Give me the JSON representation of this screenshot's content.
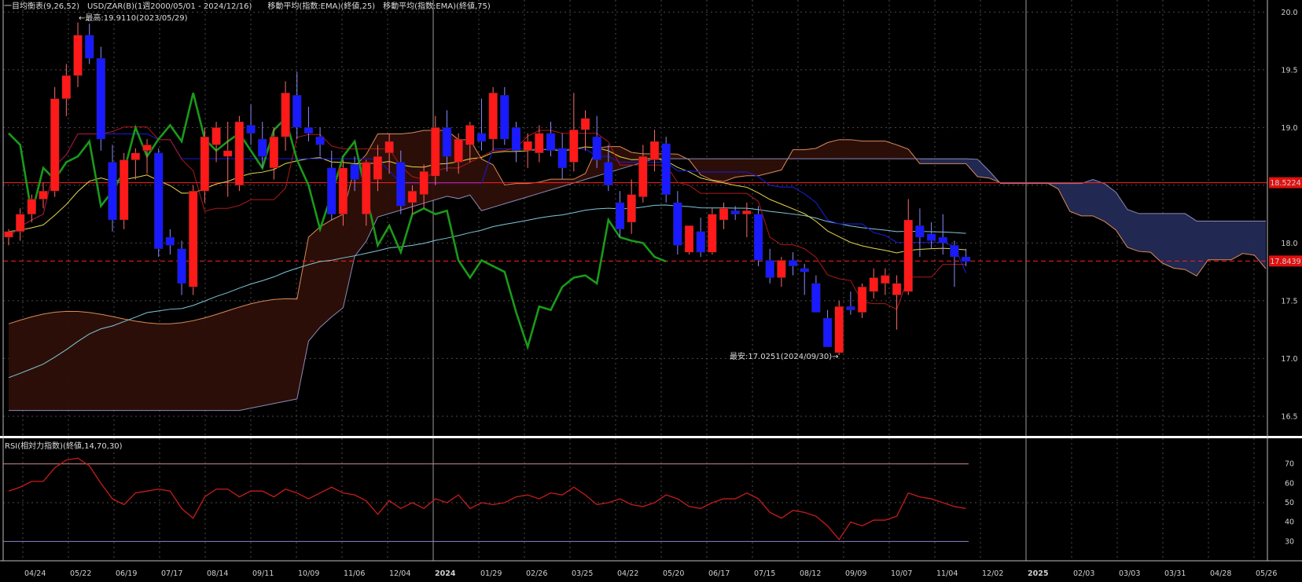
{
  "chart_data": [
    {
      "type": "candlestick",
      "title": "一目均衡表(9,26,52)　USD/ZAR(B)(1週2000/05/01 - 2024/12/16)　　移動平均(指数:EMA)(終値,25)　移動平均(指数:EMA)(終値,75)",
      "price_axis_ticks": [
        "20.0",
        "19.5",
        "19.0",
        "18.5",
        "18.0",
        "17.5",
        "17.0",
        "16.5"
      ],
      "ylim": [
        16.35,
        20.05
      ],
      "x_ticks": [
        "04/24",
        "05/22",
        "06/19",
        "07/17",
        "08/14",
        "09/11",
        "10/09",
        "11/06",
        "12/04",
        "2024",
        "01/29",
        "02/26",
        "03/25",
        "04/22",
        "05/20",
        "06/17",
        "07/15",
        "08/12",
        "09/09",
        "10/07",
        "11/04",
        "12/02",
        "2025",
        "02/03",
        "03/03",
        "03/31",
        "04/28",
        "05/26"
      ],
      "year_ticks": [
        "2024",
        "2025"
      ],
      "annotations": {
        "high": "←最高:19.9110(2023/05/29)",
        "low": "最安:17.0251(2024/09/30)→"
      },
      "price_labels": {
        "resistance": "18.5224",
        "last": "17.8439"
      },
      "colors": {
        "up": "#ff1a1a",
        "down": "#1a1aff",
        "chikou": "#1a9a1a",
        "ema25": "#e6d84a",
        "ema75": "#7ec8d8",
        "tenkan": "#b01818",
        "kijun": "#1818c0",
        "cloud_bull": "#2e0f08",
        "cloud_bear": "#232a55",
        "span_a": "#d98a5a",
        "span_b": "#8a8ab8"
      },
      "candles": [
        [
          18.05,
          18.12,
          17.98,
          18.1
        ],
        [
          18.1,
          18.3,
          18.02,
          18.25
        ],
        [
          18.25,
          18.42,
          18.18,
          18.38
        ],
        [
          18.38,
          18.52,
          18.3,
          18.45
        ],
        [
          18.45,
          19.35,
          18.4,
          19.25
        ],
        [
          19.25,
          19.55,
          19.1,
          19.45
        ],
        [
          19.45,
          19.91,
          19.35,
          19.8
        ],
        [
          19.8,
          19.9,
          19.55,
          19.6
        ],
        [
          19.6,
          19.7,
          18.8,
          18.9
        ],
        [
          18.7,
          18.85,
          18.1,
          18.2
        ],
        [
          18.2,
          18.78,
          18.12,
          18.72
        ],
        [
          18.72,
          18.82,
          18.55,
          18.78
        ],
        [
          18.8,
          18.9,
          18.6,
          18.85
        ],
        [
          18.78,
          18.82,
          17.88,
          17.95
        ],
        [
          18.05,
          18.12,
          17.9,
          17.98
        ],
        [
          17.95,
          18.02,
          17.55,
          17.65
        ],
        [
          17.62,
          18.5,
          17.55,
          18.45
        ],
        [
          18.45,
          19.0,
          18.35,
          18.92
        ],
        [
          18.85,
          19.05,
          18.7,
          19.0
        ],
        [
          18.75,
          19.05,
          18.4,
          18.8
        ],
        [
          18.5,
          19.1,
          18.45,
          19.05
        ],
        [
          19.02,
          19.2,
          18.85,
          18.95
        ],
        [
          18.9,
          19.05,
          18.65,
          18.75
        ],
        [
          18.65,
          19.0,
          18.55,
          18.92
        ],
        [
          18.92,
          19.4,
          18.8,
          19.3
        ],
        [
          19.28,
          19.48,
          18.9,
          19.0
        ],
        [
          19.0,
          19.18,
          18.88,
          18.95
        ],
        [
          18.92,
          19.0,
          18.75,
          18.85
        ],
        [
          18.65,
          18.8,
          18.2,
          18.25
        ],
        [
          18.25,
          18.72,
          18.15,
          18.65
        ],
        [
          18.68,
          18.75,
          18.45,
          18.55
        ],
        [
          18.25,
          18.72,
          18.15,
          18.7
        ],
        [
          18.55,
          18.85,
          18.45,
          18.75
        ],
        [
          18.78,
          18.95,
          18.6,
          18.88
        ],
        [
          18.7,
          18.8,
          18.25,
          18.32
        ],
        [
          18.35,
          18.5,
          18.25,
          18.45
        ],
        [
          18.42,
          18.68,
          18.3,
          18.62
        ],
        [
          18.58,
          19.1,
          18.5,
          19.0
        ],
        [
          19.0,
          19.15,
          18.62,
          18.75
        ],
        [
          18.7,
          18.95,
          18.6,
          18.9
        ],
        [
          18.85,
          19.05,
          18.7,
          19.02
        ],
        [
          18.95,
          19.25,
          18.8,
          18.88
        ],
        [
          18.9,
          19.35,
          18.8,
          19.3
        ],
        [
          19.28,
          19.35,
          18.85,
          18.9
        ],
        [
          19.0,
          19.05,
          18.7,
          18.8
        ],
        [
          18.8,
          18.95,
          18.65,
          18.88
        ],
        [
          18.78,
          19.02,
          18.7,
          18.95
        ],
        [
          18.95,
          19.05,
          18.75,
          18.8
        ],
        [
          18.82,
          18.95,
          18.55,
          18.65
        ],
        [
          18.7,
          19.3,
          18.62,
          18.98
        ],
        [
          18.98,
          19.15,
          18.8,
          19.08
        ],
        [
          18.92,
          19.1,
          18.65,
          18.72
        ],
        [
          18.7,
          18.85,
          18.45,
          18.5
        ],
        [
          18.35,
          18.45,
          18.05,
          18.12
        ],
        [
          18.18,
          18.55,
          18.08,
          18.42
        ],
        [
          18.4,
          18.85,
          18.35,
          18.75
        ],
        [
          18.72,
          18.98,
          18.62,
          18.88
        ],
        [
          18.86,
          18.92,
          18.35,
          18.42
        ],
        [
          18.35,
          18.45,
          17.9,
          17.98
        ],
        [
          17.92,
          18.15,
          17.9,
          18.15
        ],
        [
          18.1,
          18.22,
          17.88,
          17.92
        ],
        [
          17.92,
          18.3,
          17.9,
          18.25
        ],
        [
          18.2,
          18.35,
          18.12,
          18.3
        ],
        [
          18.28,
          18.32,
          18.2,
          18.25
        ],
        [
          18.25,
          18.35,
          18.05,
          18.28
        ],
        [
          18.25,
          18.32,
          17.8,
          17.85
        ],
        [
          17.85,
          17.95,
          17.65,
          17.7
        ],
        [
          17.7,
          17.88,
          17.62,
          17.85
        ],
        [
          17.85,
          17.92,
          17.72,
          17.8
        ],
        [
          17.78,
          17.82,
          17.55,
          17.75
        ],
        [
          17.65,
          17.72,
          17.4,
          17.4
        ],
        [
          17.35,
          17.42,
          17.1,
          17.1
        ],
        [
          17.05,
          17.5,
          17.03,
          17.45
        ],
        [
          17.45,
          17.58,
          17.38,
          17.42
        ],
        [
          17.4,
          17.65,
          17.35,
          17.62
        ],
        [
          17.58,
          17.78,
          17.52,
          17.7
        ],
        [
          17.65,
          17.78,
          17.55,
          17.72
        ],
        [
          17.55,
          17.72,
          17.25,
          17.65
        ],
        [
          17.58,
          18.38,
          17.55,
          18.2
        ],
        [
          18.15,
          18.3,
          17.88,
          18.05
        ],
        [
          18.08,
          18.18,
          17.95,
          18.02
        ],
        [
          18.05,
          18.25,
          17.9,
          18.0
        ],
        [
          17.98,
          18.02,
          17.62,
          17.88
        ],
        [
          17.88,
          17.95,
          17.8,
          17.84
        ]
      ],
      "rsi": {
        "label": "RSI(相対力指数)(終値,14,70,30)",
        "ticks": [
          "70",
          "60",
          "50",
          "40",
          "30"
        ],
        "levels": [
          70,
          50,
          30
        ],
        "values": [
          56,
          58,
          61,
          61,
          68,
          72,
          73,
          69,
          60,
          52,
          49,
          55,
          56,
          57,
          56,
          47,
          42,
          53,
          57,
          57,
          53,
          56,
          56,
          53,
          57,
          55,
          52,
          55,
          58,
          55,
          54,
          51,
          44,
          51,
          47,
          50,
          47,
          52,
          50,
          54,
          47,
          50,
          49,
          50,
          53,
          54,
          52,
          55,
          54,
          58,
          54,
          49,
          50,
          52,
          49,
          48,
          50,
          54,
          52,
          48,
          47,
          50,
          52,
          52,
          55,
          52,
          45,
          42,
          46,
          45,
          43,
          38,
          31,
          40,
          38,
          41,
          41,
          43,
          55,
          53,
          52,
          50,
          48,
          47
        ]
      }
    }
  ]
}
